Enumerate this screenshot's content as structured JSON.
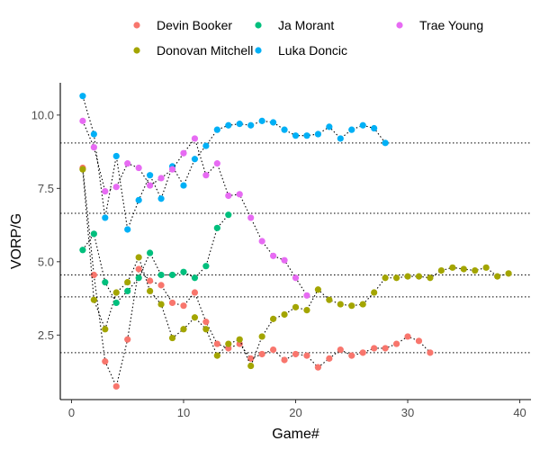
{
  "chart_data": {
    "type": "scatter",
    "xlabel": "Game#",
    "ylabel": "VORP/G",
    "xlim": [
      -1,
      41
    ],
    "ylim": [
      0.3,
      11.1
    ],
    "x_ticks": [
      0,
      10,
      20,
      30,
      40
    ],
    "y_ticks": [
      2.5,
      5.0,
      7.5,
      10.0
    ],
    "y_tick_labels": [
      "2.5",
      "5.0",
      "7.5",
      "10.0"
    ],
    "grid": false,
    "legend_position": "top",
    "reference_lines": [
      9.05,
      6.65,
      4.55,
      3.8,
      1.9
    ],
    "series": [
      {
        "name": "Devin Booker",
        "color": "#F8766D",
        "x": [
          1,
          2,
          3,
          4,
          5,
          6,
          7,
          8,
          9,
          10,
          11,
          12,
          13,
          14,
          15,
          16,
          17,
          18,
          19,
          20,
          21,
          22,
          23,
          24,
          25,
          26,
          27,
          28,
          29,
          30,
          31,
          32
        ],
        "y": [
          8.2,
          4.55,
          1.6,
          0.75,
          2.35,
          4.75,
          4.35,
          4.2,
          3.6,
          3.5,
          3.95,
          2.95,
          2.2,
          2.05,
          2.2,
          1.7,
          1.85,
          2.0,
          1.65,
          1.85,
          1.8,
          1.4,
          1.7,
          2.0,
          1.8,
          1.9,
          2.05,
          2.05,
          2.2,
          2.45,
          2.3,
          1.9
        ]
      },
      {
        "name": "Donovan Mitchell",
        "color": "#A3A500",
        "x": [
          1,
          2,
          3,
          4,
          5,
          6,
          7,
          8,
          9,
          10,
          11,
          12,
          13,
          14,
          15,
          16,
          17,
          18,
          19,
          20,
          21,
          22,
          23,
          24,
          25,
          26,
          27,
          28,
          29,
          30,
          31,
          32,
          33,
          34,
          35,
          36,
          37,
          38,
          39
        ],
        "y": [
          8.15,
          3.7,
          2.7,
          3.95,
          4.3,
          5.15,
          4.0,
          3.55,
          2.4,
          2.7,
          3.1,
          2.7,
          1.8,
          2.2,
          2.35,
          1.45,
          2.45,
          3.05,
          3.2,
          3.45,
          3.35,
          4.05,
          3.7,
          3.55,
          3.5,
          3.55,
          3.95,
          4.45,
          4.45,
          4.5,
          4.5,
          4.45,
          4.7,
          4.8,
          4.75,
          4.7,
          4.8,
          4.5,
          4.6
        ]
      },
      {
        "name": "Ja Morant",
        "color": "#00BF7D",
        "x": [
          1,
          2,
          3,
          4,
          5,
          6,
          7,
          8,
          9,
          10,
          11,
          12,
          13,
          14
        ],
        "y": [
          5.4,
          5.95,
          4.3,
          3.6,
          4.0,
          4.45,
          5.3,
          4.55,
          4.55,
          4.65,
          4.45,
          4.85,
          6.15,
          6.6
        ]
      },
      {
        "name": "Luka Doncic",
        "color": "#00B0F6",
        "x": [
          1,
          2,
          3,
          4,
          5,
          6,
          7,
          8,
          9,
          10,
          11,
          12,
          13,
          14,
          15,
          16,
          17,
          18,
          19,
          20,
          21,
          22,
          23,
          24,
          25,
          26,
          27,
          28
        ],
        "y": [
          10.65,
          9.35,
          6.5,
          8.6,
          6.1,
          7.1,
          7.95,
          7.15,
          8.25,
          7.6,
          8.5,
          8.95,
          9.5,
          9.65,
          9.7,
          9.65,
          9.8,
          9.75,
          9.5,
          9.3,
          9.3,
          9.35,
          9.6,
          9.2,
          9.5,
          9.65,
          9.55,
          9.05
        ]
      },
      {
        "name": "Trae Young",
        "color": "#E76BF3",
        "x": [
          1,
          2,
          3,
          4,
          5,
          6,
          7,
          8,
          9,
          10,
          11,
          12,
          13,
          14,
          15,
          16,
          17,
          18,
          19,
          20,
          21
        ],
        "y": [
          9.8,
          8.9,
          7.4,
          7.55,
          8.35,
          8.2,
          7.6,
          7.85,
          8.15,
          8.7,
          9.2,
          7.95,
          8.35,
          7.25,
          7.3,
          6.5,
          5.7,
          5.2,
          5.05,
          4.45,
          3.85
        ]
      }
    ]
  }
}
